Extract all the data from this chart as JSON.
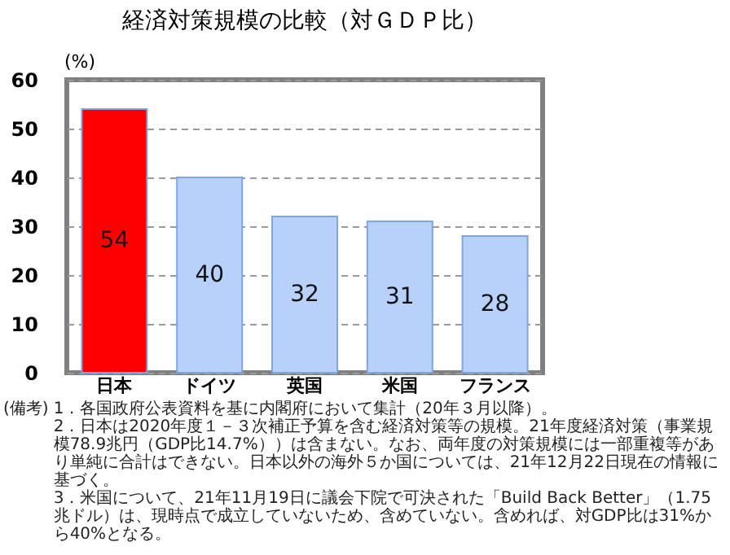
{
  "chart_data": {
    "type": "bar",
    "title": "経済対策規模の比較（対ＧＤＰ比）",
    "ylabel": "(%)",
    "categories": [
      "日本",
      "ドイツ",
      "英国",
      "米国",
      "フランス"
    ],
    "values": [
      54,
      40,
      32,
      31,
      28
    ],
    "colors": [
      "#ff0000",
      "#b7d1fb",
      "#b7d1fb",
      "#b7d1fb",
      "#b7d1fb"
    ],
    "ylim": [
      0,
      60
    ],
    "yticks": [
      0,
      10,
      20,
      30,
      40,
      50,
      60
    ],
    "grid": "y",
    "data_labels": true,
    "annotations": [
      "(備考)",
      "1．各国政府公表資料を基に内閣府において集計（20年３月以降）。",
      "2．日本は2020年度１－３次補正予算を含む経済対策等の規模。21年度経済対策（事業規模78.9兆円（GDP比14.7%））は含まない。なお、両年度の対策規模には一部重複等があり単純に合計はできない。日本以外の海外５か国については、21年12月22日現在の情報に基づく。",
      "3．米国について、21年11月19日に議会下院で可決された「Build Back Better」（1.75兆ドル）は、現時点で成立していないため、含めていない。含めれば、対GDP比は31%から40%となる。"
    ]
  }
}
